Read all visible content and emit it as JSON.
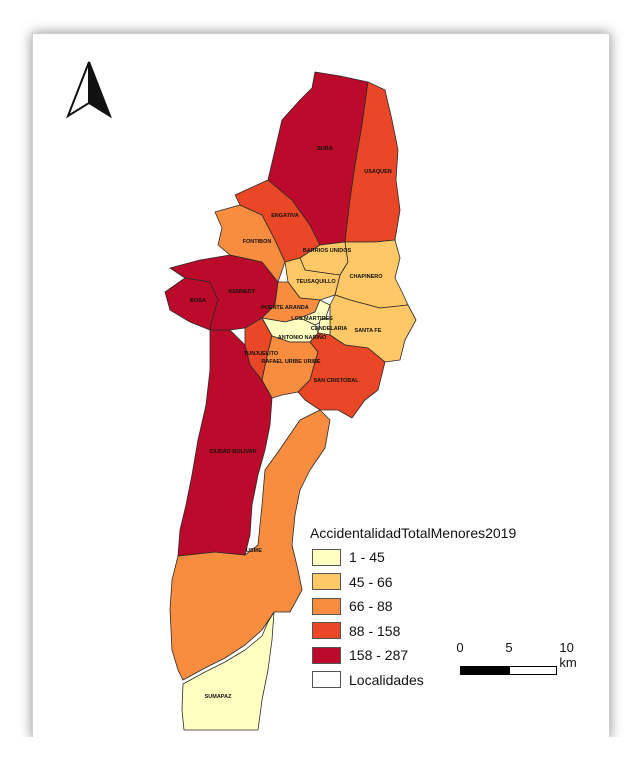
{
  "legend": {
    "title": "AccidentalidadTotalMenores2019",
    "classes": [
      {
        "label": "1 - 45",
        "color": "#ffffbf"
      },
      {
        "label": "45 - 66",
        "color": "#fdc865"
      },
      {
        "label": "66 - 88",
        "color": "#f98d3f"
      },
      {
        "label": "88 - 158",
        "color": "#ea4727"
      },
      {
        "label": "158 - 287",
        "color": "#bb0a2a"
      }
    ],
    "outline_label": "Localidades"
  },
  "scale": {
    "labels": [
      "0",
      "5",
      "10 km"
    ]
  },
  "north_arrow": "north-arrow-icon",
  "localities": [
    {
      "name": "SUBA",
      "class": 4
    },
    {
      "name": "USAQUEN",
      "class": 3
    },
    {
      "name": "ENGATIVA",
      "class": 3
    },
    {
      "name": "FONTIBON",
      "class": 2
    },
    {
      "name": "BARRIOS UNIDOS",
      "class": 1
    },
    {
      "name": "CHAPINERO",
      "class": 1
    },
    {
      "name": "TEUSAQUILLO",
      "class": 1
    },
    {
      "name": "KENNEDY",
      "class": 4
    },
    {
      "name": "BOSA",
      "class": 4
    },
    {
      "name": "PUENTE ARANDA",
      "class": 2
    },
    {
      "name": "LOS MARTIRES",
      "class": 0
    },
    {
      "name": "CANDELARIA",
      "class": 0
    },
    {
      "name": "SANTA FE",
      "class": 1
    },
    {
      "name": "ANTONIO NARIÑO",
      "class": 0
    },
    {
      "name": "TUNJUELITO",
      "class": 3
    },
    {
      "name": "RAFAEL URIBE URIBE",
      "class": 2
    },
    {
      "name": "SAN CRISTOBAL",
      "class": 3
    },
    {
      "name": "CIUDAD BOLIVAR",
      "class": 4
    },
    {
      "name": "USME",
      "class": 2
    },
    {
      "name": "SUMAPAZ",
      "class": 0
    }
  ]
}
